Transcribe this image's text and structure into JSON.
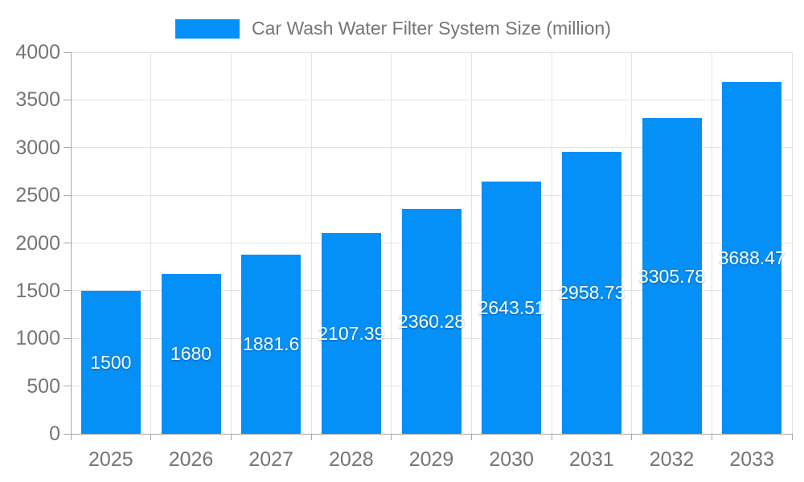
{
  "colors": {
    "bar": "#0590F7",
    "axis_label": "#757575",
    "grid": "#e3e3e3",
    "axis_line": "#a8a8a8",
    "value_label": "#ffffff",
    "background": "#ffffff"
  },
  "chart_data": {
    "type": "bar",
    "title": "Car Wash Water Filter System Size (million)",
    "legend_position": "top",
    "categories": [
      "2025",
      "2026",
      "2027",
      "2028",
      "2029",
      "2030",
      "2031",
      "2032",
      "2033"
    ],
    "values": [
      1500,
      1680,
      1881.6,
      2107.39,
      2360.28,
      2643.51,
      2958.73,
      3305.78,
      3688.47
    ],
    "value_labels": [
      "1500",
      "1680",
      "1881.6",
      "2107.39",
      "2360.28",
      "2643.51",
      "2958.73",
      "3305.78",
      "3688.47"
    ],
    "xlabel": "",
    "ylabel": "",
    "ylim": [
      0,
      4000
    ],
    "y_ticks": [
      0,
      500,
      1000,
      1500,
      2000,
      2500,
      3000,
      3500,
      4000
    ],
    "grid": true
  }
}
